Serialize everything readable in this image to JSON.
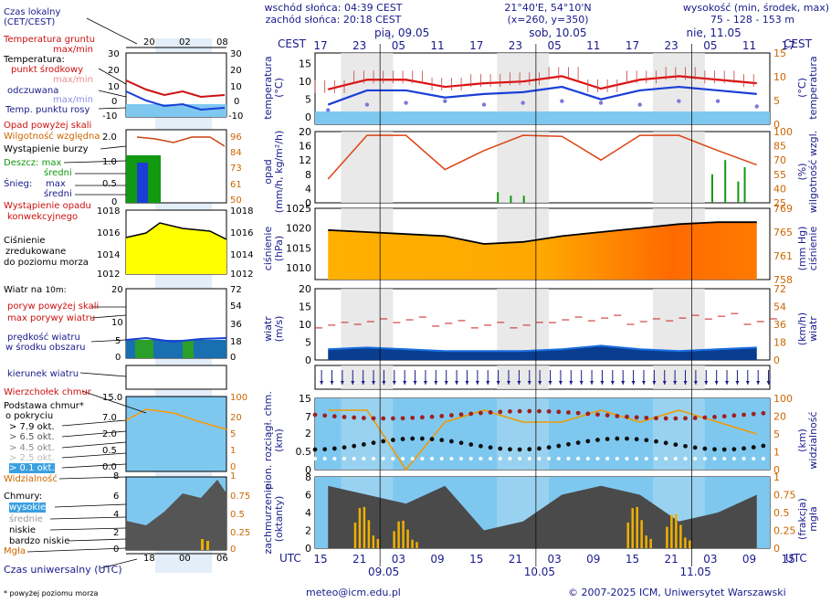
{
  "header": {
    "sunrise": "wschód słońca: 04:39 CEST",
    "sunset": "zachód słońca: 20:18 CEST",
    "coords": "21°40'E, 54°10'N",
    "grid": "(x=260,  y=350)",
    "altitude_title": "wysokość (min, środek, max)",
    "altitude_values": "75 - 128 - 153 m"
  },
  "days_top": [
    "pią, 09.05",
    "sob, 10.05",
    "nie, 11.05"
  ],
  "cest_label": "CEST",
  "utc_label": "UTC",
  "cest_hours": [
    "17",
    "23",
    "05",
    "11",
    "17",
    "23",
    "05",
    "11",
    "17",
    "23",
    "05",
    "11",
    "17"
  ],
  "utc_hours": [
    "15",
    "21",
    "03",
    "09",
    "15",
    "21",
    "03",
    "09",
    "15",
    "21",
    "03",
    "09",
    "15"
  ],
  "days_bottom": [
    "09.05",
    "10.05",
    "11.05"
  ],
  "legend": {
    "local_time": "Czas lokalny",
    "local_time_sub": "(CET/CEST)",
    "local_ticks": [
      "20",
      "02",
      "08"
    ],
    "ground_temp": "Temperatura gruntu",
    "ground_temp_sub": "max/min",
    "temperature": "Temperatura:",
    "mid_point": "punkt środkowy",
    "max_min": "max/min",
    "felt": "odczuwana",
    "felt_sub": "max/min",
    "dew": "Temp. punktu rosy",
    "precip_above": "Opad powyżej skali",
    "humidity": "Wilgotność względna",
    "storm": "Wystąpienie burzy",
    "rain_max": "Deszcz: max",
    "rain_mid": "średni",
    "snow": "Śnieg:",
    "snow_max": "max",
    "snow_mid": "średni",
    "conv": "Wystąpienie opadu",
    "conv_sub": "konwekcyjnego",
    "pressure": "Ciśnienie",
    "pressure2": "zredukowane",
    "pressure3": "do poziomu morza",
    "wind_on": "Wiatr na ",
    "wind_on_sub": "10m:",
    "gust_above": "poryw powyżej skali",
    "max_gust": "max porywy wiatru",
    "wind_speed": "prędkość wiatru",
    "wind_area": "w środku obszaru",
    "wind_dir": "kierunek wiatru",
    "cb_top": "Wierzchołek chmur",
    "cloud_base": "Podstawa chmur*",
    "cloud_base2": "o pokryciu",
    "okt79": "> 7.9 okt.",
    "okt65": "> 6.5 okt.",
    "okt45": "> 4.5 okt.",
    "okt25": "> 2.5 okt.",
    "okt01": "> 0.1 okt.",
    "visibility": "Widzialność",
    "clouds": "Chmury:",
    "high": "wysokie",
    "mid": "średnie",
    "low": "niskie",
    "very_low": "bardzo niskie",
    "fog": "Mgła",
    "utc_time": "Czas uniwersalny (UTC)",
    "utc_ticks": [
      "18",
      "00",
      "06"
    ],
    "footnote": "* powyżej poziomu morza"
  },
  "axis_labels": {
    "temp_l": "temperatura",
    "temp_l2": "(°C)",
    "temp_r": "temperatura",
    "temp_r2": "(°C)",
    "precip_l": "opad",
    "precip_l2": "(mm/h, kg/m²/h)",
    "hum_r": "wilgotność wzgl.",
    "hum_r2": "(%)",
    "pres_l": "ciśnienie",
    "pres_l2": "(hPa)",
    "pres_r": "ciśnienie",
    "pres_r2": "(mm Hg)",
    "wind_l": "wiatr",
    "wind_l2": "(m/s)",
    "wind_r": "wiatr",
    "wind_r2": "(km/h)",
    "cb_l": "pion. rozciągł. chm.",
    "cb_l2": "(km)",
    "vis_r": "widzialność",
    "vis_r2": "(km)",
    "cl_l": "zachmurzenie",
    "cl_l2": "(oktanty)",
    "fog_r": "mgła",
    "fog_r2": "(frakcja)"
  },
  "footer": {
    "email": "meteo@icm.edu.pl",
    "copyright": "© 2007-2025 ICM, Uniwersytet Warszawski"
  },
  "colors": {
    "navy": "#1a1a8c",
    "red": "#cc1111",
    "blue": "#1a3fd6",
    "sky": "#7ec8f0",
    "gray_band": "#d8d8d8",
    "yellow": "#ffff00",
    "orange": "#ff8800",
    "green": "#119911",
    "fog": "#e8b000"
  },
  "chart_data": [
    {
      "type": "line",
      "title": "temperatura",
      "ylabel": "temperatura (°C)",
      "ylim": [
        -2,
        18
      ],
      "x_hours_utc": [
        0,
        6,
        12,
        18,
        24,
        30,
        36,
        42,
        48,
        54,
        60,
        66
      ],
      "series": [
        {
          "name": "punkt środkowy",
          "values": [
            7.8,
            10.5,
            10.5,
            8.5,
            9.5,
            10,
            11.5,
            8,
            10.5,
            11.5,
            10.5,
            9.5
          ]
        },
        {
          "name": "odczuwana",
          "values": [
            3.5,
            7.5,
            7.5,
            5.5,
            6.5,
            7,
            8.5,
            5,
            7.5,
            8.5,
            7.5,
            6.5
          ]
        },
        {
          "name": "punkt rosy",
          "values": [
            2,
            3.5,
            4,
            4.5,
            3.5,
            4,
            4.5,
            4,
            3.5,
            4.5,
            4.5,
            3
          ]
        }
      ]
    },
    {
      "type": "line",
      "title": "opad / wilgotność",
      "ylabel": "opad (mm/h)",
      "ylim": [
        0,
        20
      ],
      "y2label": "wilgotność wzgl. (%)",
      "y2lim": [
        25,
        100
      ],
      "series": [
        {
          "name": "wilgotność",
          "values": [
            50,
            96,
            96,
            60,
            80,
            96,
            95,
            70,
            96,
            96,
            80,
            65
          ]
        }
      ]
    },
    {
      "type": "area",
      "title": "ciśnienie",
      "ylabel": "ciśnienie (hPa)",
      "ylim": [
        1007,
        1025
      ],
      "series": [
        {
          "name": "ciśnienie",
          "values": [
            1019.5,
            1019,
            1018.5,
            1018,
            1016,
            1016.5,
            1018,
            1019,
            1020,
            1021,
            1021.5,
            1021.5
          ]
        }
      ]
    },
    {
      "type": "line",
      "title": "wiatr",
      "ylabel": "wiatr (m/s)",
      "ylim": [
        0,
        20
      ],
      "series": [
        {
          "name": "prędkość",
          "values": [
            3,
            3.5,
            3,
            2.5,
            2.5,
            2.5,
            3,
            4,
            3,
            2.5,
            3,
            3.5
          ]
        },
        {
          "name": "porywy max",
          "values": [
            9,
            10,
            10.5,
            9.5,
            9,
            9,
            10.5,
            11,
            10,
            11,
            11.5,
            10
          ]
        }
      ]
    },
    {
      "type": "line",
      "title": "chmury / widzialność",
      "ylabel": "(km)",
      "ylim": [
        0,
        15
      ],
      "y2label": "widzialność (km)",
      "y2lim": [
        0,
        100
      ],
      "series": [
        {
          "name": "widzialność",
          "values": [
            25,
            25,
            0,
            20,
            25,
            20,
            20,
            25,
            20,
            25,
            20,
            15
          ]
        }
      ]
    },
    {
      "type": "area",
      "title": "zachmurzenie",
      "ylabel": "zachmurzenie (oktanty)",
      "ylim": [
        0,
        8
      ],
      "y2label": "mgła (frakcja)",
      "y2lim": [
        0,
        1
      ],
      "series": [
        {
          "name": "zachmurzenie",
          "values": [
            7,
            6,
            5,
            7,
            2,
            3,
            6,
            7,
            6,
            3,
            4,
            6
          ]
        },
        {
          "name": "mgła",
          "values": [
            0,
            0.6,
            0.4,
            0,
            0,
            0,
            0,
            0,
            0.6,
            0.5,
            0,
            0
          ]
        }
      ]
    }
  ]
}
